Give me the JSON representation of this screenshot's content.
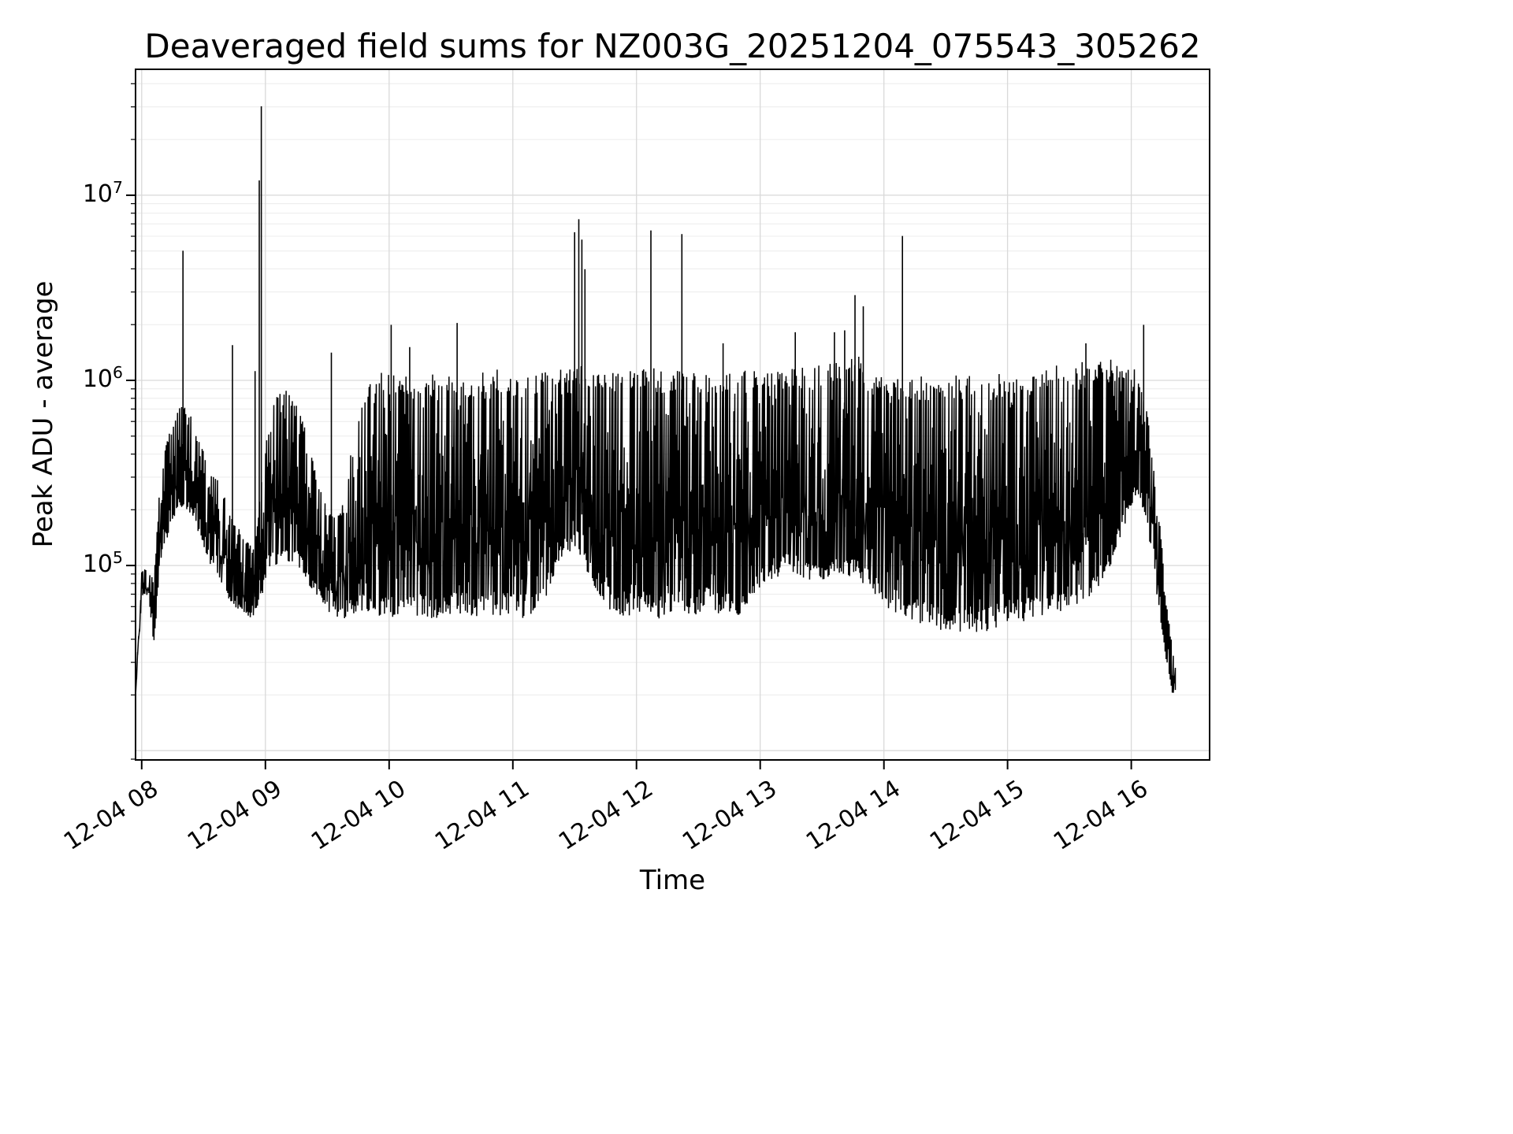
{
  "chart_data": {
    "type": "line",
    "title": "Deaveraged field sums for NZ003G_20251204_075543_305262",
    "xlabel": "Time",
    "ylabel": "Peak ADU - average",
    "x_scale": "time",
    "y_scale": "log",
    "grid": true,
    "line_color": "#000000",
    "background_color": "#ffffff",
    "x_tick_labels": [
      "12-04 08",
      "12-04 09",
      "12-04 10",
      "12-04 11",
      "12-04 12",
      "12-04 13",
      "12-04 14",
      "12-04 15",
      "12-04 16"
    ],
    "x_tick_minutes": [
      480,
      540,
      600,
      660,
      720,
      780,
      840,
      900,
      960
    ],
    "x_range_minutes": [
      477,
      998
    ],
    "y_tick_exponents": [
      5,
      6,
      7
    ],
    "y_log_range": [
      3.95,
      7.68
    ],
    "noise_seed": 42,
    "envelope_log10": [
      [
        477,
        4.28,
        4.33
      ],
      [
        480,
        4.82,
        4.98
      ],
      [
        483,
        4.86,
        4.99
      ],
      [
        486,
        4.55,
        4.92
      ],
      [
        489,
        5.0,
        5.5
      ],
      [
        493,
        5.15,
        5.72
      ],
      [
        498,
        5.3,
        5.88
      ],
      [
        503,
        5.28,
        5.86
      ],
      [
        508,
        5.15,
        5.7
      ],
      [
        513,
        5.0,
        5.55
      ],
      [
        518,
        4.88,
        5.45
      ],
      [
        524,
        4.78,
        5.28
      ],
      [
        529,
        4.72,
        5.15
      ],
      [
        534,
        4.7,
        5.1
      ],
      [
        536,
        4.75,
        5.2
      ],
      [
        539,
        4.85,
        5.6
      ],
      [
        543,
        4.95,
        5.9
      ],
      [
        548,
        5.0,
        5.97
      ],
      [
        554,
        5.0,
        5.9
      ],
      [
        560,
        4.9,
        5.72
      ],
      [
        566,
        4.8,
        5.45
      ],
      [
        572,
        4.72,
        5.3
      ],
      [
        578,
        4.7,
        5.35
      ],
      [
        584,
        4.72,
        5.8
      ],
      [
        590,
        4.7,
        6.0
      ],
      [
        597,
        4.68,
        6.05
      ],
      [
        605,
        4.66,
        6.04
      ],
      [
        613,
        4.7,
        6.05
      ],
      [
        621,
        4.66,
        6.04
      ],
      [
        629,
        4.7,
        6.05
      ],
      [
        637,
        4.7,
        6.04
      ],
      [
        645,
        4.68,
        6.05
      ],
      [
        653,
        4.7,
        6.06
      ],
      [
        661,
        4.68,
        6.04
      ],
      [
        669,
        4.7,
        6.05
      ],
      [
        677,
        4.82,
        6.05
      ],
      [
        684,
        5.02,
        6.06
      ],
      [
        691,
        5.08,
        6.08
      ],
      [
        698,
        4.88,
        6.07
      ],
      [
        706,
        4.73,
        6.06
      ],
      [
        714,
        4.7,
        6.07
      ],
      [
        722,
        4.7,
        6.06
      ],
      [
        730,
        4.68,
        6.07
      ],
      [
        738,
        4.7,
        6.06
      ],
      [
        746,
        4.7,
        6.06
      ],
      [
        754,
        4.72,
        6.07
      ],
      [
        762,
        4.7,
        6.05
      ],
      [
        770,
        4.7,
        6.06
      ],
      [
        778,
        4.8,
        6.05
      ],
      [
        786,
        4.9,
        6.06
      ],
      [
        794,
        4.95,
        6.06
      ],
      [
        802,
        4.9,
        6.07
      ],
      [
        810,
        4.87,
        6.09
      ],
      [
        818,
        4.9,
        6.12
      ],
      [
        826,
        4.9,
        6.15
      ],
      [
        833,
        4.82,
        6.08
      ],
      [
        840,
        4.75,
        6.04
      ],
      [
        848,
        4.7,
        6.03
      ],
      [
        856,
        4.66,
        6.03
      ],
      [
        864,
        4.62,
        6.03
      ],
      [
        872,
        4.6,
        6.04
      ],
      [
        880,
        4.62,
        6.04
      ],
      [
        888,
        4.6,
        6.02
      ],
      [
        896,
        4.64,
        6.04
      ],
      [
        904,
        4.66,
        6.06
      ],
      [
        912,
        4.68,
        6.08
      ],
      [
        920,
        4.7,
        6.09
      ],
      [
        928,
        4.72,
        6.08
      ],
      [
        936,
        4.76,
        6.1
      ],
      [
        944,
        4.85,
        6.11
      ],
      [
        951,
        5.0,
        6.12
      ],
      [
        957,
        5.2,
        6.1
      ],
      [
        963,
        5.38,
        6.05
      ],
      [
        967,
        5.25,
        5.9
      ],
      [
        971,
        4.95,
        5.55
      ],
      [
        975,
        4.6,
        5.1
      ],
      [
        978,
        4.4,
        4.72
      ],
      [
        980,
        4.3,
        4.55
      ],
      [
        981.5,
        4.32,
        4.45
      ]
    ],
    "spikes_log10": [
      [
        500,
        6.7
      ],
      [
        524,
        6.19
      ],
      [
        535,
        6.05
      ],
      [
        537,
        7.08
      ],
      [
        538,
        7.48
      ],
      [
        572,
        6.15
      ],
      [
        601,
        6.3
      ],
      [
        610,
        6.18
      ],
      [
        633,
        6.31
      ],
      [
        690,
        6.8
      ],
      [
        692,
        6.87
      ],
      [
        693.5,
        6.76
      ],
      [
        695,
        6.6
      ],
      [
        727,
        6.81
      ],
      [
        742,
        6.79
      ],
      [
        762,
        6.2
      ],
      [
        797,
        6.26
      ],
      [
        816,
        6.26
      ],
      [
        821,
        6.27
      ],
      [
        826,
        6.46
      ],
      [
        830,
        6.4
      ],
      [
        849,
        6.78
      ],
      [
        938,
        6.2
      ],
      [
        966,
        6.3
      ]
    ]
  }
}
